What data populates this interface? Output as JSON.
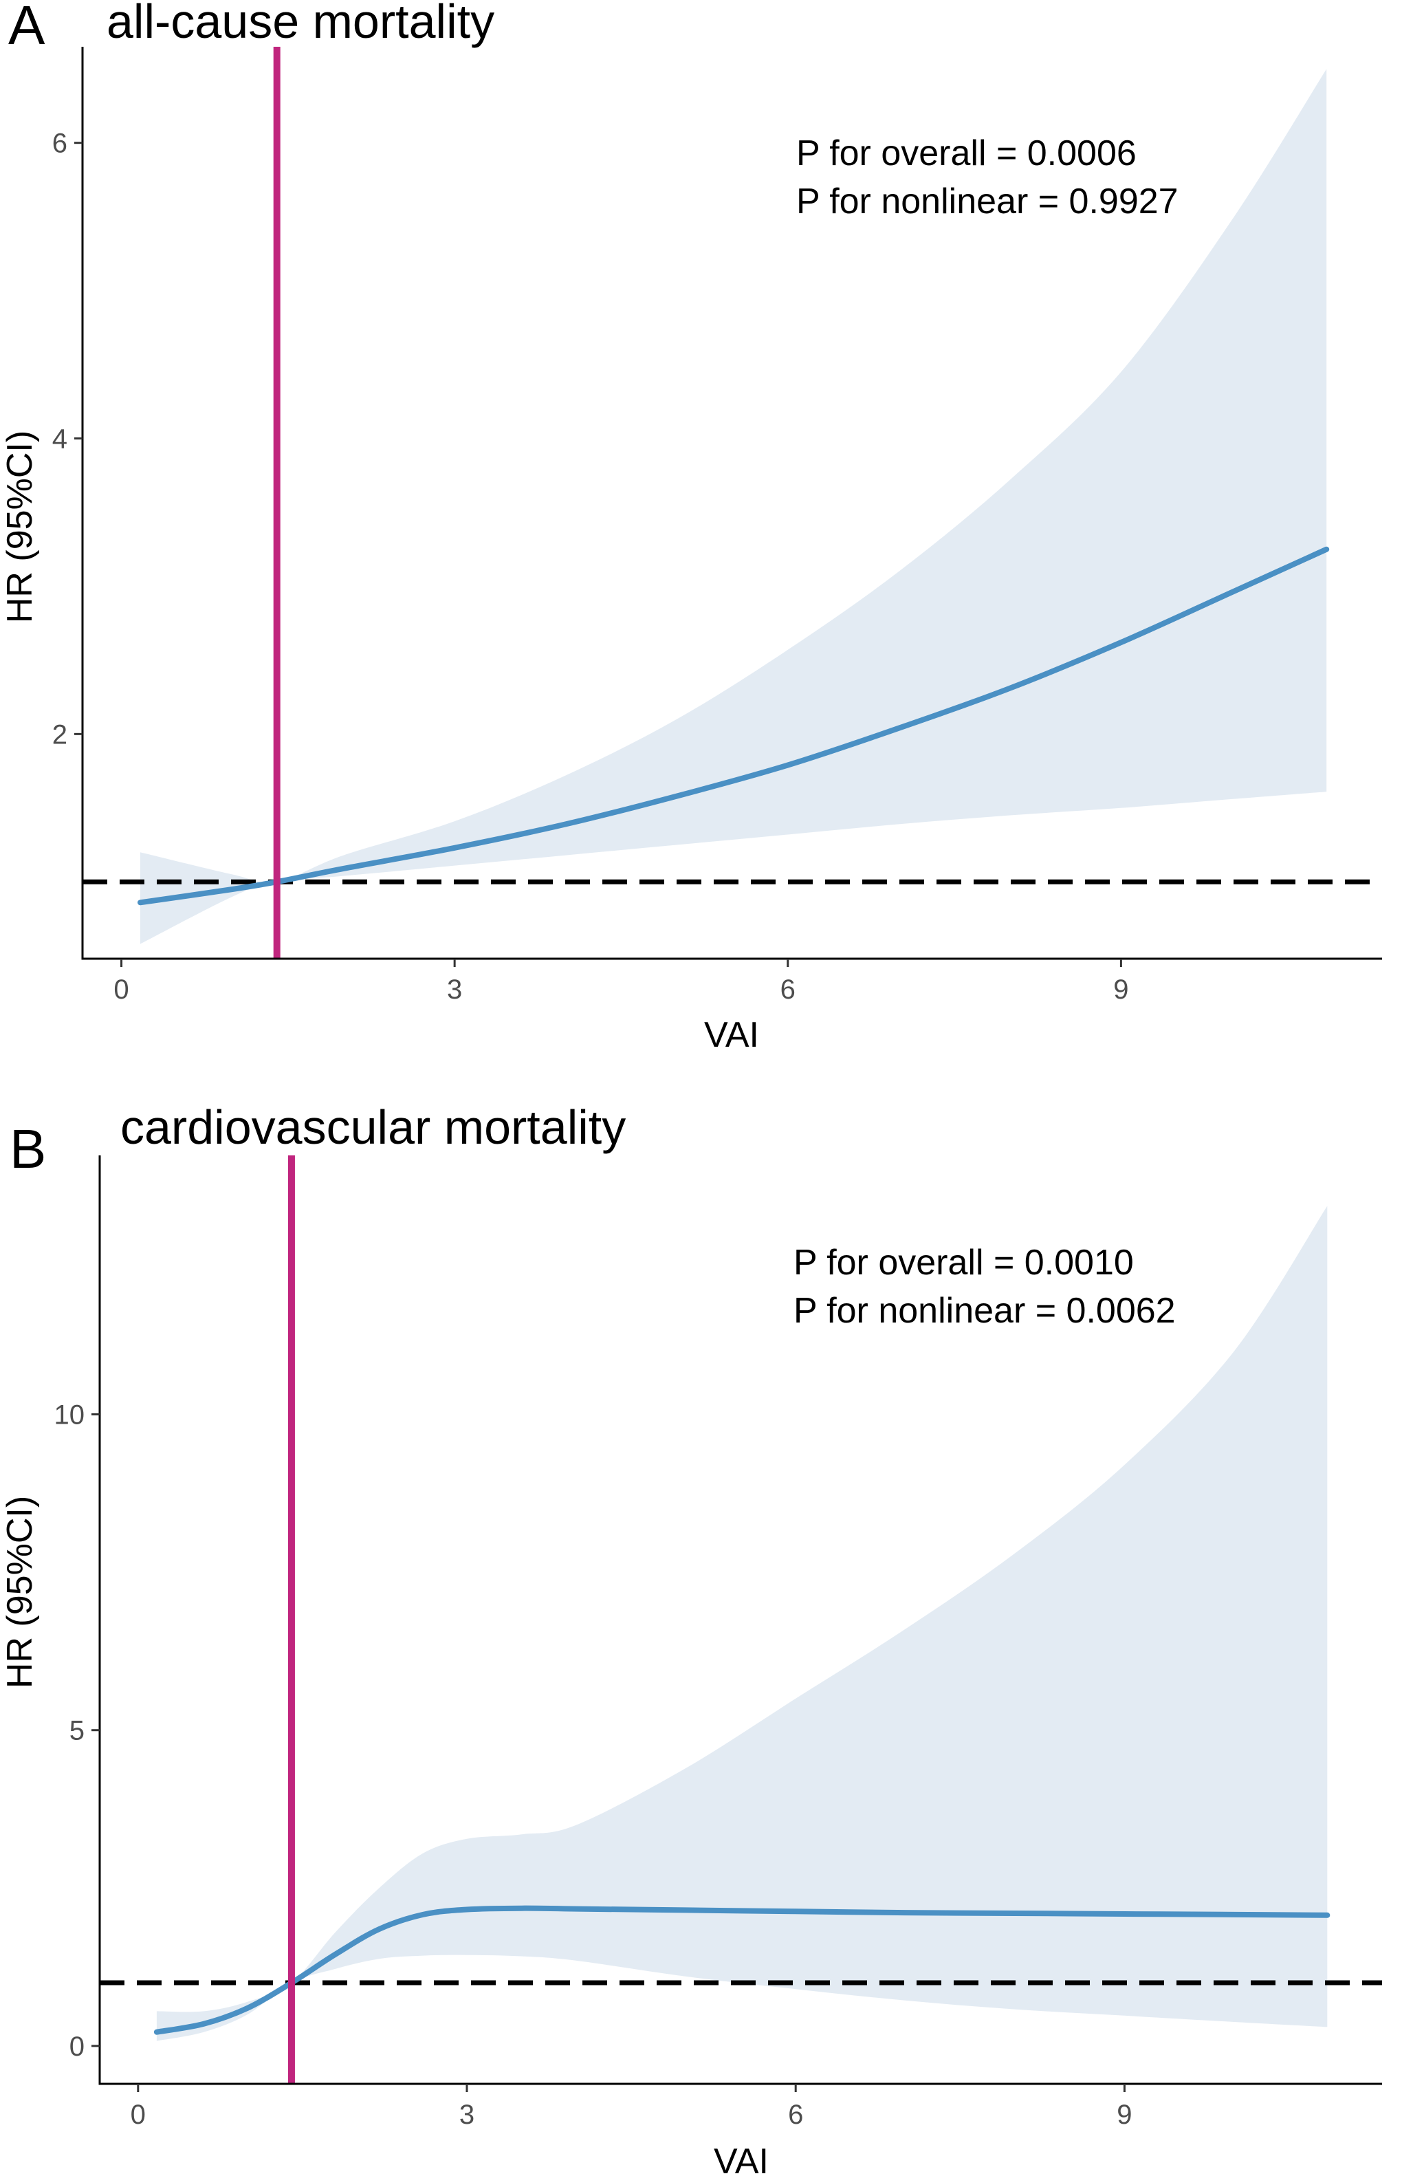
{
  "chart_data": [
    {
      "type": "line",
      "panel_label": "A",
      "title": "all-cause mortality",
      "xlabel": "VAI",
      "ylabel": "HR (95%CI)",
      "xlim": [
        -0.35,
        11.35
      ],
      "ylim": [
        0.48,
        6.65
      ],
      "xticks": [
        0,
        3,
        6,
        9
      ],
      "yticks": [
        2,
        4,
        6
      ],
      "xtick_labels": [
        "0",
        "3",
        "6",
        "9"
      ],
      "ytick_labels": [
        "2",
        "4",
        "6"
      ],
      "reference_line_hr": 1,
      "cutoff_vai": 1.4,
      "annotations": [
        "P for overall = 0.0006",
        "P for nonlinear = 0.9927"
      ],
      "series": [
        {
          "name": "HR",
          "color": "#4a90c4",
          "x": [
            0.17,
            1.0,
            1.4,
            2.0,
            3.0,
            4.0,
            5.0,
            6.0,
            7.0,
            8.0,
            9.0,
            10.0,
            10.85
          ],
          "y": [
            0.86,
            0.95,
            1.0,
            1.09,
            1.23,
            1.39,
            1.58,
            1.79,
            2.04,
            2.31,
            2.62,
            2.96,
            3.25
          ]
        },
        {
          "name": "95% CI",
          "color": "#e3ebf3",
          "x": [
            0.17,
            1.0,
            1.4,
            2.0,
            3.0,
            4.0,
            5.0,
            6.0,
            7.0,
            8.0,
            9.0,
            10.0,
            10.85
          ],
          "lower": [
            0.58,
            0.9,
            1.0,
            1.04,
            1.11,
            1.18,
            1.25,
            1.32,
            1.39,
            1.45,
            1.5,
            1.56,
            1.61
          ],
          "upper": [
            1.2,
            1.05,
            1.0,
            1.18,
            1.41,
            1.72,
            2.1,
            2.57,
            3.1,
            3.72,
            4.45,
            5.48,
            6.5
          ]
        }
      ]
    },
    {
      "type": "line",
      "panel_label": "B",
      "title": "cardiovascular mortality",
      "xlabel": "VAI",
      "ylabel": "HR (95%CI)",
      "xlim": [
        -0.35,
        11.35
      ],
      "ylim": [
        -0.6,
        14.1
      ],
      "xticks": [
        0,
        3,
        6,
        9
      ],
      "yticks": [
        0,
        5,
        10
      ],
      "xtick_labels": [
        "0",
        "3",
        "6",
        "9"
      ],
      "ytick_labels": [
        "0",
        "5",
        "10"
      ],
      "reference_line_hr": 1,
      "cutoff_vai": 1.4,
      "annotations": [
        "P for overall = 0.0010",
        "P for nonlinear = 0.0062"
      ],
      "series": [
        {
          "name": "HR",
          "color": "#4a90c4",
          "x": [
            0.17,
            0.6,
            1.0,
            1.4,
            1.8,
            2.2,
            2.6,
            3.0,
            3.5,
            4.0,
            5.0,
            6.0,
            7.0,
            8.0,
            9.0,
            10.0,
            10.85
          ],
          "y": [
            0.22,
            0.35,
            0.6,
            1.0,
            1.45,
            1.85,
            2.08,
            2.16,
            2.18,
            2.17,
            2.15,
            2.13,
            2.11,
            2.1,
            2.09,
            2.08,
            2.07
          ]
        },
        {
          "name": "95% CI",
          "color": "#e3ebf3",
          "x": [
            0.17,
            0.6,
            1.0,
            1.4,
            1.8,
            2.2,
            2.6,
            3.0,
            3.5,
            4.0,
            5.0,
            6.0,
            7.0,
            8.0,
            9.0,
            10.0,
            10.85
          ],
          "lower": [
            0.08,
            0.22,
            0.5,
            1.0,
            1.22,
            1.38,
            1.43,
            1.44,
            1.42,
            1.35,
            1.1,
            0.9,
            0.72,
            0.58,
            0.48,
            0.38,
            0.3
          ],
          "upper": [
            0.55,
            0.55,
            0.7,
            1.0,
            1.8,
            2.5,
            3.05,
            3.28,
            3.35,
            3.5,
            4.4,
            5.5,
            6.6,
            7.8,
            9.2,
            11.0,
            13.3
          ]
        }
      ]
    }
  ]
}
